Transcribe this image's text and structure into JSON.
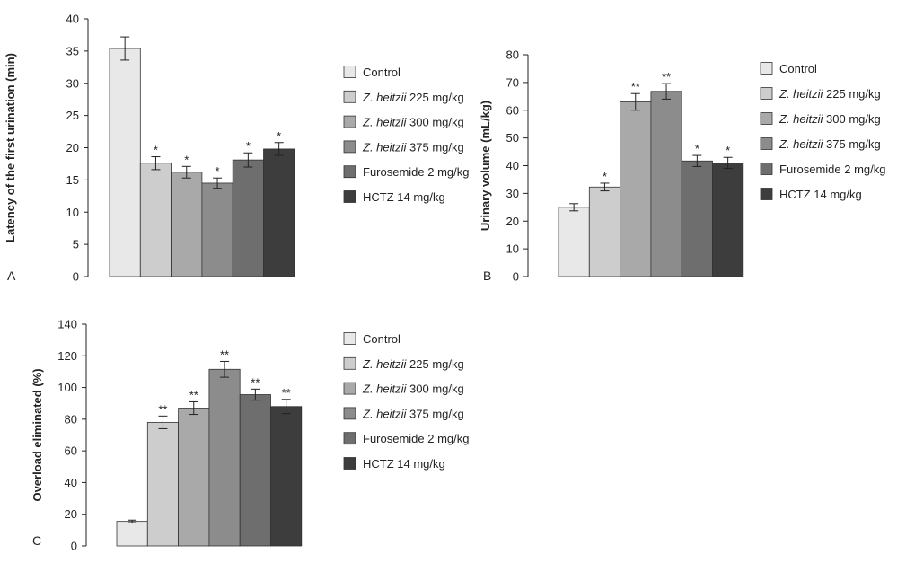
{
  "legend": [
    {
      "prefix": "",
      "italic": "",
      "suffix": "Control",
      "color": "#e8e8e8"
    },
    {
      "prefix": "",
      "italic": "Z. heitzii",
      "suffix": " 225 mg/kg",
      "color": "#cdcdcd"
    },
    {
      "prefix": "",
      "italic": "Z. heitzii",
      "suffix": " 300 mg/kg",
      "color": "#a9a9a9"
    },
    {
      "prefix": "",
      "italic": "Z. heitzii",
      "suffix": " 375 mg/kg",
      "color": "#8c8c8c"
    },
    {
      "prefix": "",
      "italic": "",
      "suffix": "Furosemide 2 mg/kg",
      "color": "#6e6e6e"
    },
    {
      "prefix": "",
      "italic": "",
      "suffix": "HCTZ 14 mg/kg",
      "color": "#3d3d3d"
    }
  ],
  "chart_data": [
    {
      "type": "bar",
      "panel": "A",
      "ylabel": "Latency of the first urination (min)",
      "ylim": [
        0,
        40
      ],
      "yticks": [
        0,
        5,
        10,
        15,
        20,
        25,
        30,
        35,
        40
      ],
      "categories": [
        "Control",
        "Z. heitzii 225 mg/kg",
        "Z. heitzii 300 mg/kg",
        "Z. heitzii 375 mg/kg",
        "Furosemide 2 mg/kg",
        "HCTZ 14 mg/kg"
      ],
      "values": [
        35.4,
        17.6,
        16.2,
        14.5,
        18.1,
        19.8
      ],
      "errors": [
        1.8,
        1.0,
        0.9,
        0.8,
        1.1,
        1.0
      ],
      "significance": [
        "",
        "*",
        "*",
        "*",
        "*",
        "*"
      ],
      "legend_position": "right"
    },
    {
      "type": "bar",
      "panel": "B",
      "ylabel": "Urinary volume (mL/kg)",
      "ylim": [
        0,
        80
      ],
      "yticks": [
        0,
        10,
        20,
        30,
        40,
        50,
        60,
        70,
        80
      ],
      "categories": [
        "Control",
        "Z. heitzii 225 mg/kg",
        "Z. heitzii 300 mg/kg",
        "Z. heitzii 375 mg/kg",
        "Furosemide 2 mg/kg",
        "HCTZ 14 mg/kg"
      ],
      "values": [
        25,
        32.3,
        63,
        66.8,
        41.7,
        41
      ],
      "errors": [
        1.3,
        1.4,
        3.0,
        2.8,
        2.0,
        2.0
      ],
      "significance": [
        "",
        "*",
        "**",
        "**",
        "*",
        "*"
      ],
      "legend_position": "right"
    },
    {
      "type": "bar",
      "panel": "C",
      "ylabel": "Overload eliminated (%)",
      "ylim": [
        0,
        140
      ],
      "yticks": [
        0,
        20,
        40,
        60,
        80,
        100,
        120,
        140
      ],
      "categories": [
        "Control",
        "Z. heitzii 225 mg/kg",
        "Z. heitzii 300 mg/kg",
        "Z. heitzii 375 mg/kg",
        "Furosemide 2 mg/kg",
        "HCTZ 14 mg/kg"
      ],
      "values": [
        15.5,
        78,
        87,
        111.5,
        95.5,
        88
      ],
      "errors": [
        0.8,
        4.0,
        4.0,
        5.0,
        3.5,
        4.5
      ],
      "significance": [
        "",
        "**",
        "**",
        "**",
        "**",
        "**"
      ],
      "legend_position": "right"
    }
  ]
}
